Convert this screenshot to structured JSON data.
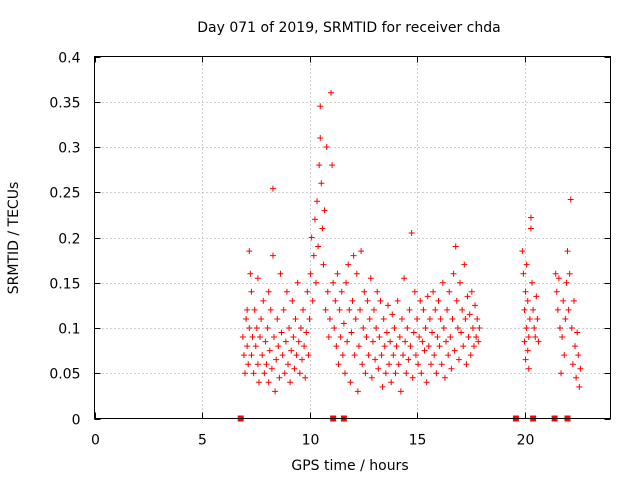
{
  "chart_data": {
    "type": "scatter",
    "title": "Day 071 of 2019, SRMTID for receiver chda",
    "xlabel": "GPS time / hours",
    "ylabel": "SRMTID / TECUs",
    "xlim": [
      0,
      24
    ],
    "ylim": [
      0,
      0.4
    ],
    "xticks": [
      0,
      5,
      10,
      15,
      20
    ],
    "xtick_labels": [
      "0",
      "5",
      "10",
      "15",
      "20"
    ],
    "yticks": [
      0,
      0.05,
      0.1,
      0.15,
      0.2,
      0.25,
      0.3,
      0.35,
      0.4
    ],
    "ytick_labels": [
      "0",
      "0.05",
      "0.1",
      "0.15",
      "0.2",
      "0.25",
      "0.3",
      "0.35",
      "0.4"
    ],
    "grid": true,
    "marker": "+",
    "color": "#ff0000",
    "gap_markers_x": [
      6.8,
      11.1,
      11.6,
      19.6,
      20.4,
      21.4,
      22.0
    ],
    "series": [
      {
        "name": "SRMTID",
        "points": [
          [
            6.9,
            0.09
          ],
          [
            6.95,
            0.07
          ],
          [
            7.0,
            0.05
          ],
          [
            7.05,
            0.11
          ],
          [
            7.1,
            0.08
          ],
          [
            7.1,
            0.12
          ],
          [
            7.15,
            0.06
          ],
          [
            7.2,
            0.1
          ],
          [
            7.2,
            0.185
          ],
          [
            7.25,
            0.16
          ],
          [
            7.3,
            0.14
          ],
          [
            7.3,
            0.07
          ],
          [
            7.35,
            0.09
          ],
          [
            7.4,
            0.05
          ],
          [
            7.45,
            0.12
          ],
          [
            7.5,
            0.08
          ],
          [
            7.55,
            0.1
          ],
          [
            7.6,
            0.06
          ],
          [
            7.6,
            0.155
          ],
          [
            7.65,
            0.04
          ],
          [
            7.7,
            0.09
          ],
          [
            7.75,
            0.11
          ],
          [
            7.8,
            0.07
          ],
          [
            7.85,
            0.13
          ],
          [
            7.9,
            0.05
          ],
          [
            7.95,
            0.085
          ],
          [
            8.0,
            0.06
          ],
          [
            8.05,
            0.1
          ],
          [
            8.1,
            0.04
          ],
          [
            8.1,
            0.14
          ],
          [
            8.15,
            0.075
          ],
          [
            8.2,
            0.12
          ],
          [
            8.25,
            0.055
          ],
          [
            8.3,
            0.254
          ],
          [
            8.3,
            0.18
          ],
          [
            8.35,
            0.09
          ],
          [
            8.4,
            0.03
          ],
          [
            8.45,
            0.065
          ],
          [
            8.5,
            0.11
          ],
          [
            8.55,
            0.08
          ],
          [
            8.6,
            0.045
          ],
          [
            8.65,
            0.16
          ],
          [
            8.7,
            0.095
          ],
          [
            8.75,
            0.07
          ],
          [
            8.8,
            0.12
          ],
          [
            8.85,
            0.05
          ],
          [
            8.9,
            0.085
          ],
          [
            8.95,
            0.14
          ],
          [
            9.0,
            0.06
          ],
          [
            9.05,
            0.1
          ],
          [
            9.1,
            0.04
          ],
          [
            9.15,
            0.075
          ],
          [
            9.2,
            0.13
          ],
          [
            9.25,
            0.09
          ],
          [
            9.3,
            0.055
          ],
          [
            9.35,
            0.11
          ],
          [
            9.4,
            0.07
          ],
          [
            9.45,
            0.15
          ],
          [
            9.5,
            0.085
          ],
          [
            9.55,
            0.05
          ],
          [
            9.6,
            0.1
          ],
          [
            9.65,
            0.065
          ],
          [
            9.7,
            0.12
          ],
          [
            9.75,
            0.08
          ],
          [
            9.8,
            0.045
          ],
          [
            9.85,
            0.095
          ],
          [
            9.9,
            0.14
          ],
          [
            9.95,
            0.07
          ],
          [
            10.0,
            0.11
          ],
          [
            10.05,
            0.16
          ],
          [
            10.1,
            0.2
          ],
          [
            10.15,
            0.13
          ],
          [
            10.2,
            0.18
          ],
          [
            10.25,
            0.22
          ],
          [
            10.3,
            0.15
          ],
          [
            10.35,
            0.24
          ],
          [
            10.4,
            0.19
          ],
          [
            10.45,
            0.28
          ],
          [
            10.5,
            0.345
          ],
          [
            10.5,
            0.31
          ],
          [
            10.55,
            0.26
          ],
          [
            10.6,
            0.21
          ],
          [
            10.65,
            0.17
          ],
          [
            10.7,
            0.23
          ],
          [
            10.75,
            0.12
          ],
          [
            10.8,
            0.3
          ],
          [
            10.85,
            0.14
          ],
          [
            10.9,
            0.09
          ],
          [
            10.95,
            0.11
          ],
          [
            11.0,
            0.36
          ],
          [
            11.05,
            0.28
          ],
          [
            11.1,
            0.15
          ],
          [
            11.15,
            0.1
          ],
          [
            11.2,
            0.13
          ],
          [
            11.25,
            0.08
          ],
          [
            11.3,
            0.16
          ],
          [
            11.35,
            0.06
          ],
          [
            11.4,
            0.12
          ],
          [
            11.45,
            0.09
          ],
          [
            11.5,
            0.14
          ],
          [
            11.55,
            0.07
          ],
          [
            11.6,
            0.105
          ],
          [
            11.65,
            0.05
          ],
          [
            11.7,
            0.15
          ],
          [
            11.75,
            0.085
          ],
          [
            11.8,
            0.17
          ],
          [
            11.85,
            0.12
          ],
          [
            11.9,
            0.04
          ],
          [
            11.95,
            0.095
          ],
          [
            12.0,
            0.13
          ],
          [
            12.05,
            0.18
          ],
          [
            12.1,
            0.07
          ],
          [
            12.15,
            0.11
          ],
          [
            12.2,
            0.16
          ],
          [
            12.25,
            0.03
          ],
          [
            12.3,
            0.08
          ],
          [
            12.35,
            0.12
          ],
          [
            12.4,
            0.185
          ],
          [
            12.45,
            0.06
          ],
          [
            12.5,
            0.1
          ],
          [
            12.55,
            0.14
          ],
          [
            12.6,
            0.05
          ],
          [
            12.65,
            0.09
          ],
          [
            12.7,
            0.13
          ],
          [
            12.75,
            0.07
          ],
          [
            12.8,
            0.11
          ],
          [
            12.85,
            0.155
          ],
          [
            12.9,
            0.045
          ],
          [
            12.95,
            0.085
          ],
          [
            13.0,
            0.12
          ],
          [
            13.05,
            0.065
          ],
          [
            13.1,
            0.1
          ],
          [
            13.15,
            0.14
          ],
          [
            13.2,
            0.055
          ],
          [
            13.25,
            0.09
          ],
          [
            13.3,
            0.13
          ],
          [
            13.35,
            0.07
          ],
          [
            13.4,
            0.035
          ],
          [
            13.45,
            0.11
          ],
          [
            13.5,
            0.08
          ],
          [
            13.55,
            0.05
          ],
          [
            13.6,
            0.095
          ],
          [
            13.65,
            0.125
          ],
          [
            13.7,
            0.06
          ],
          [
            13.75,
            0.085
          ],
          [
            13.8,
            0.04
          ],
          [
            13.85,
            0.115
          ],
          [
            13.9,
            0.07
          ],
          [
            13.95,
            0.1
          ],
          [
            14.0,
            0.05
          ],
          [
            14.05,
            0.08
          ],
          [
            14.1,
            0.13
          ],
          [
            14.15,
            0.06
          ],
          [
            14.2,
            0.09
          ],
          [
            14.25,
            0.03
          ],
          [
            14.3,
            0.11
          ],
          [
            14.35,
            0.07
          ],
          [
            14.4,
            0.155
          ],
          [
            14.45,
            0.085
          ],
          [
            14.5,
            0.05
          ],
          [
            14.55,
            0.1
          ],
          [
            14.6,
            0.065
          ],
          [
            14.65,
            0.12
          ],
          [
            14.7,
            0.08
          ],
          [
            14.75,
            0.205
          ],
          [
            14.8,
            0.045
          ],
          [
            14.85,
            0.095
          ],
          [
            14.9,
            0.14
          ],
          [
            14.95,
            0.07
          ],
          [
            15.0,
            0.11
          ],
          [
            15.05,
            0.06
          ],
          [
            15.1,
            0.09
          ],
          [
            15.15,
            0.13
          ],
          [
            15.2,
            0.05
          ],
          [
            15.25,
            0.085
          ],
          [
            15.3,
            0.12
          ],
          [
            15.35,
            0.075
          ],
          [
            15.4,
            0.1
          ],
          [
            15.45,
            0.04
          ],
          [
            15.5,
            0.135
          ],
          [
            15.55,
            0.08
          ],
          [
            15.6,
            0.11
          ],
          [
            15.65,
            0.06
          ],
          [
            15.7,
            0.095
          ],
          [
            15.75,
            0.14
          ],
          [
            15.8,
            0.07
          ],
          [
            15.85,
            0.12
          ],
          [
            15.9,
            0.05
          ],
          [
            15.95,
            0.09
          ],
          [
            16.0,
            0.13
          ],
          [
            16.05,
            0.08
          ],
          [
            16.1,
            0.11
          ],
          [
            16.15,
            0.06
          ],
          [
            16.2,
            0.15
          ],
          [
            16.25,
            0.1
          ],
          [
            16.3,
            0.045
          ],
          [
            16.35,
            0.085
          ],
          [
            16.4,
            0.12
          ],
          [
            16.45,
            0.07
          ],
          [
            16.5,
            0.14
          ],
          [
            16.55,
            0.09
          ],
          [
            16.6,
            0.055
          ],
          [
            16.65,
            0.11
          ],
          [
            16.7,
            0.16
          ],
          [
            16.75,
            0.075
          ],
          [
            16.8,
            0.19
          ],
          [
            16.85,
            0.13
          ],
          [
            16.9,
            0.1
          ],
          [
            16.95,
            0.065
          ],
          [
            17.0,
            0.15
          ],
          [
            17.05,
            0.095
          ],
          [
            17.1,
            0.12
          ],
          [
            17.15,
            0.08
          ],
          [
            17.2,
            0.17
          ],
          [
            17.25,
            0.11
          ],
          [
            17.3,
            0.06
          ],
          [
            17.35,
            0.135
          ],
          [
            17.4,
            0.09
          ],
          [
            17.45,
            0.115
          ],
          [
            17.5,
            0.07
          ],
          [
            17.55,
            0.14
          ],
          [
            17.6,
            0.1
          ],
          [
            17.65,
            0.08
          ],
          [
            17.7,
            0.125
          ],
          [
            17.75,
            0.09
          ],
          [
            17.8,
            0.11
          ],
          [
            17.85,
            0.085
          ],
          [
            17.9,
            0.1
          ],
          [
            19.9,
            0.185
          ],
          [
            19.95,
            0.16
          ],
          [
            20.0,
            0.12
          ],
          [
            20.0,
            0.085
          ],
          [
            20.05,
            0.14
          ],
          [
            20.05,
            0.065
          ],
          [
            20.1,
            0.1
          ],
          [
            20.1,
            0.17
          ],
          [
            20.15,
            0.075
          ],
          [
            20.15,
            0.13
          ],
          [
            20.2,
            0.09
          ],
          [
            20.2,
            0.055
          ],
          [
            20.25,
            0.11
          ],
          [
            20.3,
            0.222
          ],
          [
            20.3,
            0.21
          ],
          [
            20.35,
            0.15
          ],
          [
            20.4,
            0.12
          ],
          [
            20.45,
            0.1
          ],
          [
            20.5,
            0.09
          ],
          [
            20.55,
            0.135
          ],
          [
            20.6,
            0.11
          ],
          [
            20.65,
            0.085
          ],
          [
            21.45,
            0.16
          ],
          [
            21.5,
            0.14
          ],
          [
            21.55,
            0.12
          ],
          [
            21.6,
            0.155
          ],
          [
            21.65,
            0.1
          ],
          [
            21.7,
            0.05
          ],
          [
            21.75,
            0.09
          ],
          [
            21.8,
            0.13
          ],
          [
            21.85,
            0.07
          ],
          [
            21.9,
            0.11
          ],
          [
            21.95,
            0.15
          ],
          [
            22.0,
            0.185
          ],
          [
            22.05,
            0.12
          ],
          [
            22.1,
            0.16
          ],
          [
            22.15,
            0.242
          ],
          [
            22.2,
            0.1
          ],
          [
            22.25,
            0.06
          ],
          [
            22.3,
            0.13
          ],
          [
            22.35,
            0.08
          ],
          [
            22.4,
            0.045
          ],
          [
            22.45,
            0.095
          ],
          [
            22.5,
            0.07
          ],
          [
            22.55,
            0.035
          ],
          [
            22.6,
            0.055
          ]
        ]
      }
    ]
  }
}
